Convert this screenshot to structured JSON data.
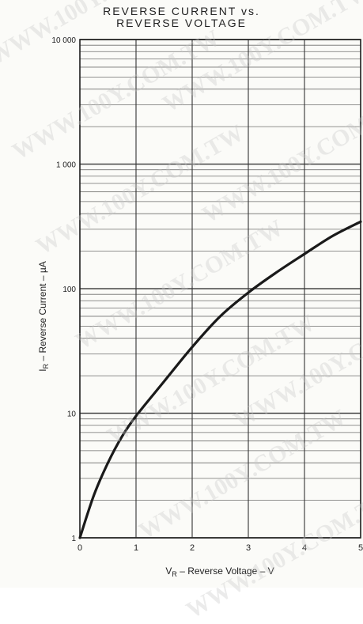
{
  "chart_data": {
    "type": "line",
    "title": "REVERSE CURRENT vs. REVERSE VOLTAGE",
    "title_lines": [
      "REVERSE CURRENT vs.",
      "REVERSE VOLTAGE"
    ],
    "xlabel": "V_R – Reverse Voltage – V",
    "xlabel_parts": {
      "prefix": "V",
      "sub": "R",
      "suffix": " – Reverse Voltage – V"
    },
    "ylabel": "I_R – Reverse Current – µA",
    "ylabel_parts": {
      "prefix": "I",
      "sub": "R",
      "suffix": " – Reverse Current – µA"
    },
    "xlim": [
      0,
      5
    ],
    "ylim": [
      1,
      10000
    ],
    "y_scale": "log",
    "grid": true,
    "x_ticks": [
      0,
      1,
      2,
      3,
      4,
      5
    ],
    "x_tick_labels": [
      "0",
      "1",
      "2",
      "3",
      "4",
      "5"
    ],
    "y_ticks": [
      1,
      10,
      100,
      1000,
      10000
    ],
    "y_tick_labels": [
      "1",
      "10",
      "100",
      "1 000",
      "10 000"
    ],
    "series": [
      {
        "x": [
          0,
          0.25,
          0.5,
          0.75,
          1,
          1.5,
          2,
          2.5,
          3,
          3.5,
          4,
          4.5,
          5
        ],
        "y": [
          1,
          2.2,
          4,
          6.5,
          9.5,
          18,
          34,
          60,
          93,
          135,
          190,
          265,
          345
        ]
      }
    ],
    "watermark": "WWW.100Y.COM.TW",
    "colors": {
      "line": "#1a1a1a",
      "grid": "#333333",
      "background": "#fbfbf8"
    }
  }
}
